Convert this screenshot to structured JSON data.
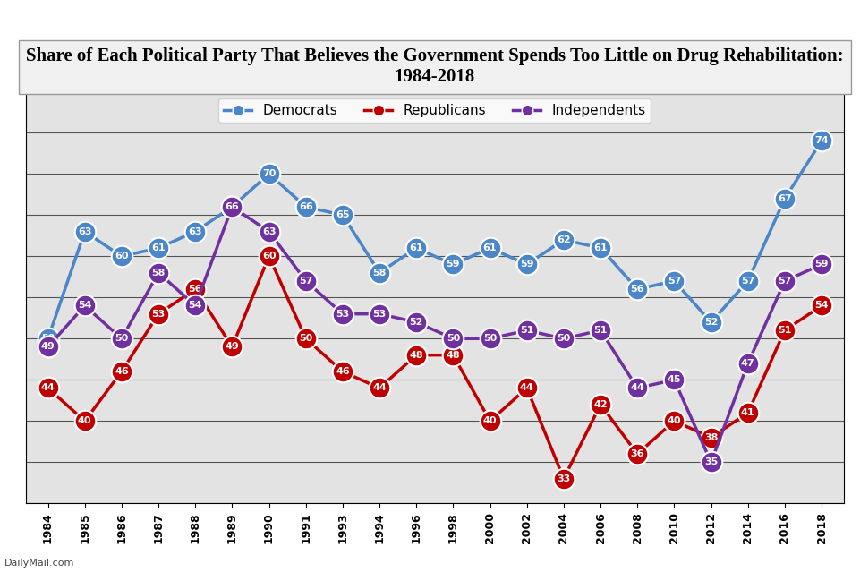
{
  "chart_data": {
    "type": "line",
    "title": "Share of Each Political Party That Believes the Government Spends Too Little on Drug Rehabilitation: 1984-2018",
    "annotations": [
      "DailyMail.com"
    ],
    "categories": [
      "1984",
      "1985",
      "1986",
      "1987",
      "1988",
      "1989",
      "1990",
      "1991",
      "1993",
      "1994",
      "1996",
      "1998",
      "2000",
      "2002",
      "2004",
      "2006",
      "2008",
      "2010",
      "2012",
      "2014",
      "2016",
      "2018"
    ],
    "series": [
      {
        "name": "Democrats",
        "color": "#4a86c8",
        "marker": "o",
        "line_style": "solid",
        "values": [
          50,
          63,
          60,
          61,
          63,
          66,
          70,
          66,
          65,
          58,
          61,
          59,
          61,
          59,
          62,
          61,
          56,
          57,
          52,
          57,
          67,
          74
        ]
      },
      {
        "name": "Republicans",
        "color": "#c00000",
        "marker": "o",
        "line_style": "solid",
        "values": [
          44,
          40,
          46,
          53,
          56,
          49,
          60,
          50,
          46,
          44,
          48,
          48,
          40,
          44,
          33,
          42,
          36,
          40,
          38,
          41,
          51,
          54
        ]
      },
      {
        "name": "Independents",
        "color": "#7030a0",
        "marker": "o",
        "line_style": "solid",
        "values": [
          49,
          54,
          50,
          58,
          54,
          66,
          63,
          57,
          53,
          53,
          52,
          50,
          50,
          51,
          50,
          51,
          44,
          45,
          35,
          47,
          57,
          59
        ]
      }
    ],
    "ylim": [
      30,
      80
    ],
    "yticks": [
      30,
      35,
      40,
      45,
      50,
      55,
      60,
      65,
      70,
      75,
      80
    ],
    "grid": true,
    "legend": "upper center",
    "data_labels": true,
    "tick_labels": "x"
  }
}
